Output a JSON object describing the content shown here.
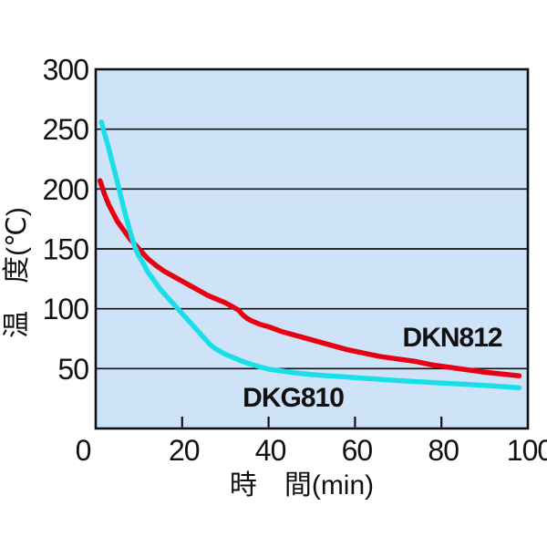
{
  "figure": {
    "background": "#ffffff",
    "text_color": "#111111"
  },
  "chart_data": {
    "type": "line",
    "title": "",
    "xlabel": "時　間(min)",
    "ylabel": "温　度(℃)",
    "xlim": [
      0,
      100
    ],
    "ylim": [
      0,
      300
    ],
    "x_ticks": [
      0,
      20,
      40,
      60,
      80,
      100
    ],
    "y_ticks": [
      50,
      100,
      150,
      200,
      250,
      300
    ],
    "grid": "horizontal-only",
    "legend_position": "inline-labels",
    "plot_background": "#cfe3f8",
    "axis_color": "#111111",
    "series": [
      {
        "name": "DKN812",
        "color": "#e60012",
        "stroke_width": 5.5,
        "label_anchor": {
          "x": 71,
          "y": 68.5
        },
        "points": [
          [
            1,
            207
          ],
          [
            2,
            196
          ],
          [
            3,
            187
          ],
          [
            5,
            173
          ],
          [
            7,
            163
          ],
          [
            8,
            158
          ],
          [
            10,
            150
          ],
          [
            12,
            142
          ],
          [
            14,
            136
          ],
          [
            16,
            131
          ],
          [
            18,
            127
          ],
          [
            20,
            123
          ],
          [
            22,
            119
          ],
          [
            24,
            115
          ],
          [
            26,
            111
          ],
          [
            28,
            108
          ],
          [
            30,
            105
          ],
          [
            32,
            101
          ],
          [
            33,
            99
          ],
          [
            34,
            95
          ],
          [
            35,
            92
          ],
          [
            36,
            90
          ],
          [
            38,
            87
          ],
          [
            40,
            85
          ],
          [
            43,
            81
          ],
          [
            46,
            78
          ],
          [
            50,
            74
          ],
          [
            54,
            70
          ],
          [
            58,
            66
          ],
          [
            62,
            63
          ],
          [
            66,
            60
          ],
          [
            70,
            58
          ],
          [
            74,
            56
          ],
          [
            78,
            53
          ],
          [
            82,
            51
          ],
          [
            86,
            49
          ],
          [
            90,
            47
          ],
          [
            94,
            45.5
          ],
          [
            98,
            44
          ]
        ]
      },
      {
        "name": "DKG810",
        "color": "#1adfe9",
        "stroke_width": 5.5,
        "label_anchor": {
          "x": 34,
          "y": 18.3
        },
        "points": [
          [
            1.3,
            256
          ],
          [
            2,
            247
          ],
          [
            3,
            234
          ],
          [
            4,
            220
          ],
          [
            5,
            206
          ],
          [
            6,
            191
          ],
          [
            7,
            177
          ],
          [
            8,
            164
          ],
          [
            9,
            152
          ],
          [
            10,
            144
          ],
          [
            11,
            138
          ],
          [
            12,
            131
          ],
          [
            13,
            126
          ],
          [
            14,
            121
          ],
          [
            15,
            116
          ],
          [
            16,
            112
          ],
          [
            17.5,
            106
          ],
          [
            19,
            100
          ],
          [
            20.5,
            94
          ],
          [
            22,
            88
          ],
          [
            23.5,
            82
          ],
          [
            25,
            76
          ],
          [
            26.5,
            70
          ],
          [
            28,
            66
          ],
          [
            30,
            62
          ],
          [
            32,
            59
          ],
          [
            34,
            56
          ],
          [
            36,
            53.5
          ],
          [
            38,
            51.5
          ],
          [
            40,
            49.5
          ],
          [
            43,
            48
          ],
          [
            46,
            46.5
          ],
          [
            50,
            45
          ],
          [
            54,
            44
          ],
          [
            58,
            43
          ],
          [
            62,
            42
          ],
          [
            66,
            41
          ],
          [
            70,
            40
          ],
          [
            75,
            39
          ],
          [
            80,
            38
          ],
          [
            85,
            37
          ],
          [
            90,
            36
          ],
          [
            94,
            35
          ],
          [
            98,
            34
          ]
        ]
      }
    ]
  }
}
